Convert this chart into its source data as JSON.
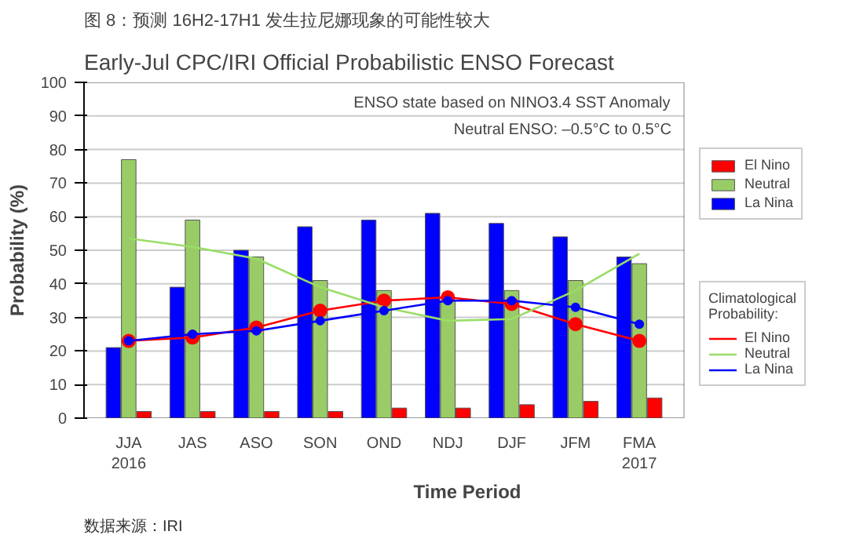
{
  "chart_data": {
    "type": "bar",
    "title": "图 8：预测 16H2-17H1 发生拉尼娜现象的可能性较大",
    "subtitle": "Early-Jul CPC/IRI Official Probabilistic ENSO Forecast",
    "xlabel": "Time Period",
    "ylabel": "Probability (%)",
    "legend_title": "Climatological Probability:",
    "categories": [
      "JJA\n2016",
      "JAS",
      "ASO",
      "SON",
      "OND",
      "NDJ",
      "DJF",
      "JFM",
      "FMA\n2017"
    ],
    "series": [
      {
        "name": "El Nino",
        "color": "#ff0000",
        "values": [
          2,
          2,
          2,
          2,
          3,
          3,
          4,
          5,
          6
        ]
      },
      {
        "name": "Neutral",
        "color": "#99cc66",
        "values": [
          77,
          59,
          48,
          41,
          38,
          35,
          38,
          41,
          46
        ]
      },
      {
        "name": "La Nina",
        "color": "#0000ff",
        "values": [
          21,
          39,
          50,
          57,
          59,
          61,
          58,
          54,
          48
        ]
      },
      {
        "name": "El Nino",
        "type": "line",
        "color": "#ff0000",
        "marker": "circle",
        "values": [
          23,
          24,
          27,
          32,
          35,
          36,
          34,
          28,
          23
        ]
      },
      {
        "name": "Neutral",
        "type": "line",
        "color": "#99dd66",
        "marker": "none",
        "values": [
          53.5,
          51,
          47.5,
          39,
          33,
          29,
          29.5,
          38,
          49
        ]
      },
      {
        "name": "La Nina",
        "type": "line",
        "color": "#0000ff",
        "marker": "circle",
        "values": [
          23,
          25,
          26,
          29,
          32,
          35,
          35,
          33,
          28
        ]
      }
    ],
    "ylim": [
      0,
      100
    ],
    "yticks": [
      0,
      10,
      20,
      30,
      40,
      50,
      60,
      70,
      80,
      90,
      100
    ],
    "grid": "y",
    "legend": "right",
    "annotations": [
      "ENSO state based on NINO3.4 SST Anomaly",
      "Neutral ENSO: –0.5°C to 0.5°C",
      "数据来源：IRI"
    ]
  }
}
